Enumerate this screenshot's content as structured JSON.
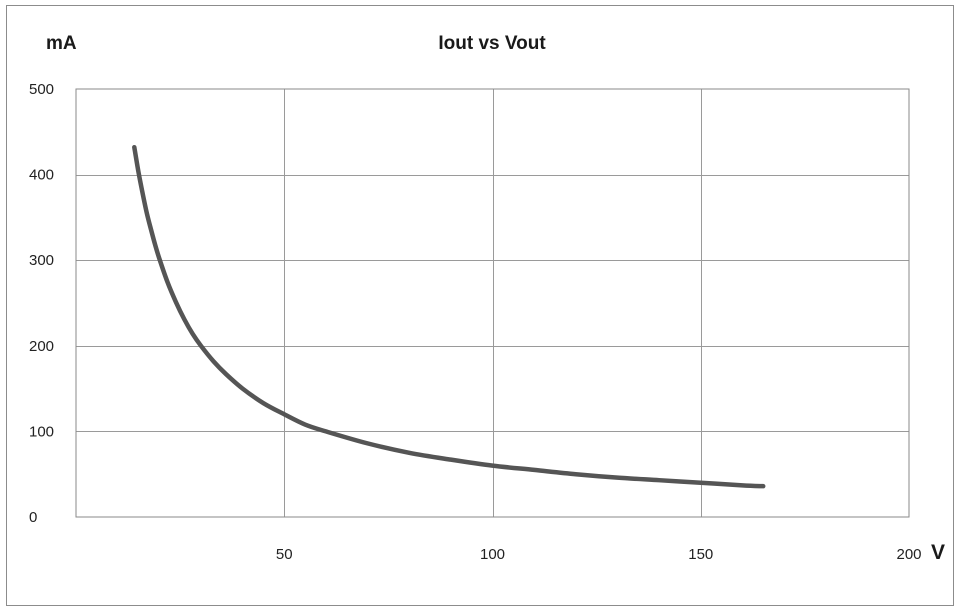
{
  "chart_data": {
    "type": "line",
    "title": "Iout vs Vout",
    "ylabel": "mA",
    "xlabel": "V",
    "xlim": [
      0,
      200
    ],
    "ylim": [
      0,
      500
    ],
    "x_ticks": [
      50,
      100,
      150,
      200
    ],
    "y_ticks": [
      0,
      100,
      200,
      300,
      400,
      500
    ],
    "grid": true,
    "series": [
      {
        "color": "#555555",
        "x": [
          14,
          15,
          16,
          17,
          18,
          19,
          20,
          22,
          24,
          26,
          28,
          30,
          33,
          36,
          40,
          45,
          50,
          55,
          60,
          70,
          80,
          90,
          100,
          110,
          120,
          130,
          140,
          150,
          160,
          165
        ],
        "y": [
          432,
          403,
          378,
          355,
          336,
          318,
          302,
          274,
          251,
          231,
          214,
          200,
          182,
          167,
          150,
          133,
          120,
          108,
          100,
          86,
          75,
          67,
          60,
          55,
          50,
          46,
          43,
          40,
          37,
          36
        ]
      }
    ]
  }
}
